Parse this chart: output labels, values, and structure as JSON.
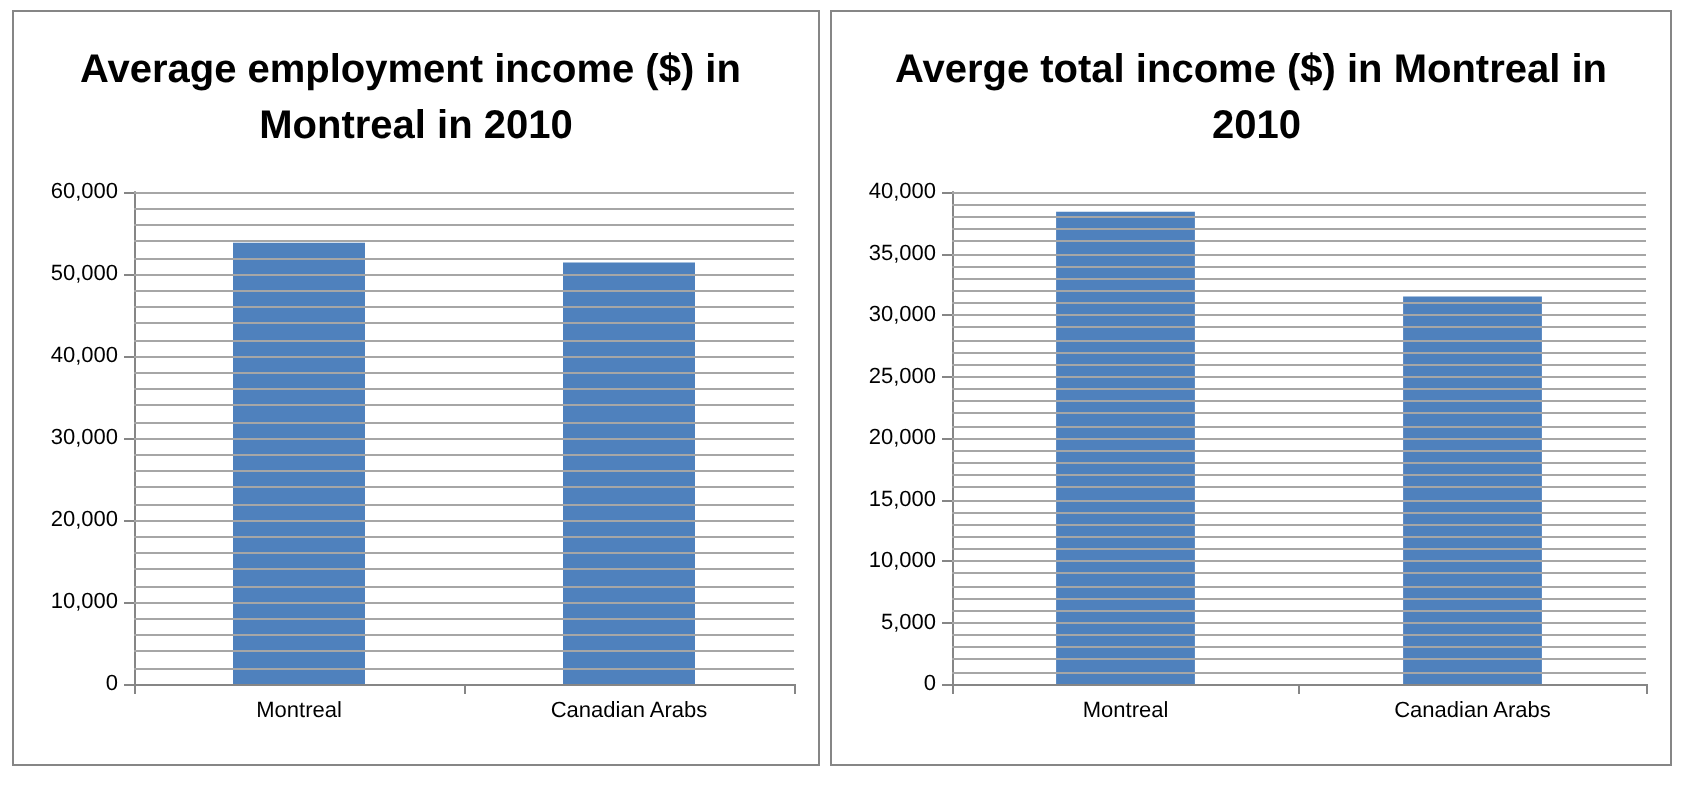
{
  "chart_data": [
    {
      "type": "bar",
      "title": "Average employment income ($) in Montreal in 2010",
      "categories": [
        "Montreal",
        "Canadian Arabs"
      ],
      "values": [
        53800,
        51400
      ],
      "color": "#4f81bd",
      "ylim": [
        0,
        60000
      ],
      "grid": "y",
      "yticks": [
        {
          "value": 0,
          "label": "0"
        },
        {
          "value": 2000,
          "label": null
        },
        {
          "value": 4000,
          "label": null
        },
        {
          "value": 6000,
          "label": null
        },
        {
          "value": 8000,
          "label": null
        },
        {
          "value": 10000,
          "label": "10,000"
        },
        {
          "value": 12000,
          "label": null
        },
        {
          "value": 14000,
          "label": null
        },
        {
          "value": 16000,
          "label": null
        },
        {
          "value": 18000,
          "label": null
        },
        {
          "value": 20000,
          "label": "20,000"
        },
        {
          "value": 22000,
          "label": null
        },
        {
          "value": 24000,
          "label": null
        },
        {
          "value": 26000,
          "label": null
        },
        {
          "value": 28000,
          "label": null
        },
        {
          "value": 30000,
          "label": "30,000"
        },
        {
          "value": 32000,
          "label": null
        },
        {
          "value": 34000,
          "label": null
        },
        {
          "value": 36000,
          "label": null
        },
        {
          "value": 38000,
          "label": null
        },
        {
          "value": 40000,
          "label": "40,000"
        },
        {
          "value": 42000,
          "label": null
        },
        {
          "value": 44000,
          "label": null
        },
        {
          "value": 46000,
          "label": null
        },
        {
          "value": 48000,
          "label": null
        },
        {
          "value": 50000,
          "label": "50,000"
        },
        {
          "value": 52000,
          "label": null
        },
        {
          "value": 54000,
          "label": null
        },
        {
          "value": 56000,
          "label": null
        },
        {
          "value": 58000,
          "label": null
        },
        {
          "value": 60000,
          "label": "60,000"
        }
      ]
    },
    {
      "type": "bar",
      "title": "Averge total income ($) in Montreal in 2010",
      "categories": [
        "Montreal",
        "Canadian Arabs"
      ],
      "values": [
        38400,
        31500
      ],
      "color": "#4f81bd",
      "ylim": [
        0,
        40000
      ],
      "grid": "y",
      "yticks": [
        {
          "value": 0,
          "label": "0"
        },
        {
          "value": 1000,
          "label": null
        },
        {
          "value": 2000,
          "label": null
        },
        {
          "value": 3000,
          "label": null
        },
        {
          "value": 4000,
          "label": null
        },
        {
          "value": 5000,
          "label": "5,000"
        },
        {
          "value": 6000,
          "label": null
        },
        {
          "value": 7000,
          "label": null
        },
        {
          "value": 8000,
          "label": null
        },
        {
          "value": 9000,
          "label": null
        },
        {
          "value": 10000,
          "label": "10,000"
        },
        {
          "value": 11000,
          "label": null
        },
        {
          "value": 12000,
          "label": null
        },
        {
          "value": 13000,
          "label": null
        },
        {
          "value": 14000,
          "label": null
        },
        {
          "value": 15000,
          "label": "15,000"
        },
        {
          "value": 16000,
          "label": null
        },
        {
          "value": 17000,
          "label": null
        },
        {
          "value": 18000,
          "label": null
        },
        {
          "value": 19000,
          "label": null
        },
        {
          "value": 20000,
          "label": "20,000"
        },
        {
          "value": 21000,
          "label": null
        },
        {
          "value": 22000,
          "label": null
        },
        {
          "value": 23000,
          "label": null
        },
        {
          "value": 24000,
          "label": null
        },
        {
          "value": 25000,
          "label": "25,000"
        },
        {
          "value": 26000,
          "label": null
        },
        {
          "value": 27000,
          "label": null
        },
        {
          "value": 28000,
          "label": null
        },
        {
          "value": 29000,
          "label": null
        },
        {
          "value": 30000,
          "label": "30,000"
        },
        {
          "value": 31000,
          "label": null
        },
        {
          "value": 32000,
          "label": null
        },
        {
          "value": 33000,
          "label": null
        },
        {
          "value": 34000,
          "label": null
        },
        {
          "value": 35000,
          "label": "35,000"
        },
        {
          "value": 36000,
          "label": null
        },
        {
          "value": 37000,
          "label": null
        },
        {
          "value": 38000,
          "label": null
        },
        {
          "value": 39000,
          "label": null
        },
        {
          "value": 40000,
          "label": "40,000"
        }
      ]
    }
  ]
}
